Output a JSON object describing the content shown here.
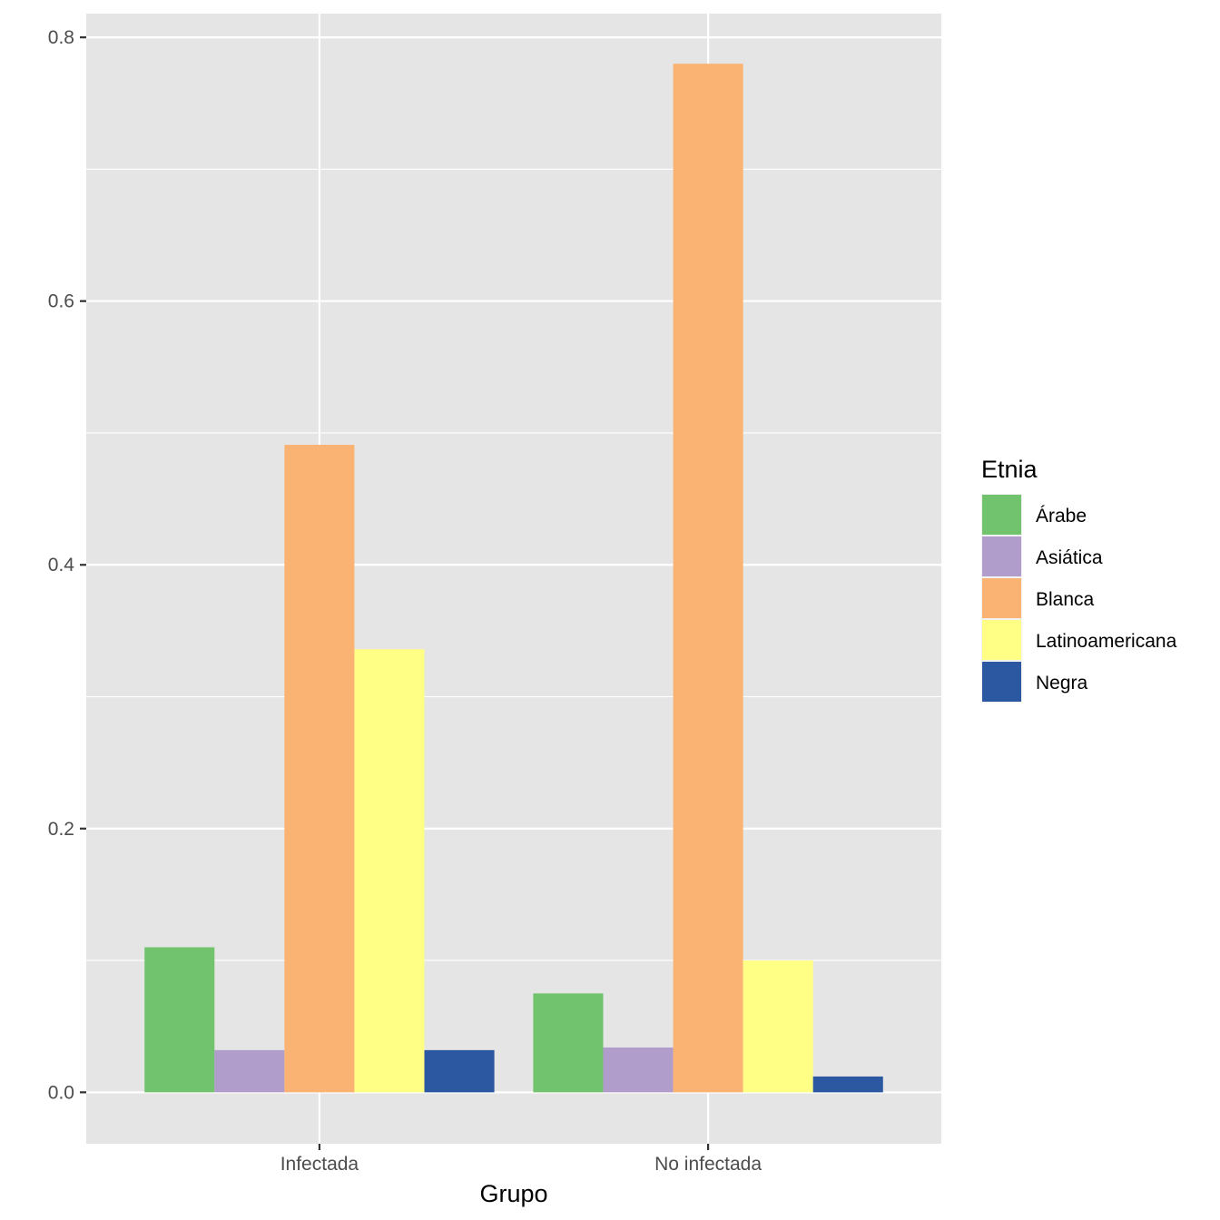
{
  "chart_data": {
    "type": "bar",
    "xlabel": "Grupo",
    "ylabel": "",
    "categories": [
      "Infectada",
      "No infectada"
    ],
    "ylim": [
      -0.039,
      0.818
    ],
    "yticks": [
      0.0,
      0.2,
      0.4,
      0.6,
      0.8
    ],
    "ytick_labels": [
      "0.0",
      "0.2",
      "0.4",
      "0.6",
      "0.8"
    ],
    "grid": true,
    "legend": {
      "title": "Etnia",
      "position": "right"
    },
    "series": [
      {
        "name": "Árabe",
        "color": "#71C36E",
        "values": [
          0.11,
          0.075
        ]
      },
      {
        "name": "Asiática",
        "color": "#B09DCB",
        "values": [
          0.032,
          0.034
        ]
      },
      {
        "name": "Blanca",
        "color": "#FAB373",
        "values": [
          0.491,
          0.78
        ]
      },
      {
        "name": "Latinoamericana",
        "color": "#FFFF85",
        "values": [
          0.336,
          0.1
        ]
      },
      {
        "name": "Negra",
        "color": "#2B58A0",
        "values": [
          0.032,
          0.012
        ]
      }
    ],
    "colors": {
      "panel": "#E5E5E5",
      "grid": "#FFFFFF",
      "tick": "#333333"
    }
  }
}
